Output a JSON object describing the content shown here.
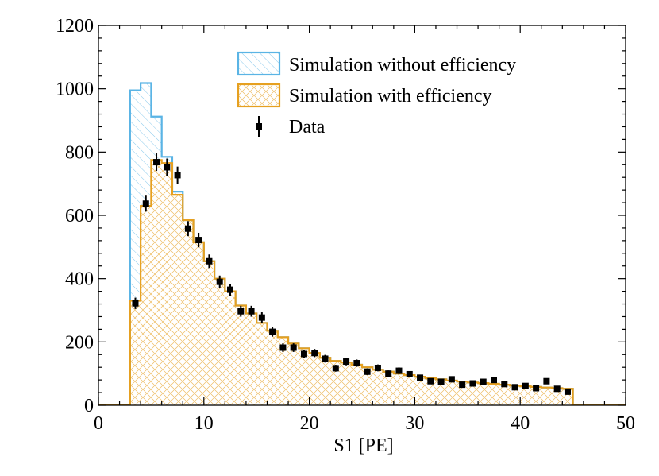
{
  "chart_data": {
    "type": "histogram",
    "xlabel": "S1 [PE]",
    "ylabel": "",
    "xlim": [
      0,
      50
    ],
    "ylim": [
      0,
      1200
    ],
    "xticks": [
      0,
      10,
      20,
      30,
      40,
      50
    ],
    "yticks": [
      0,
      200,
      400,
      600,
      800,
      1000,
      1200
    ],
    "bin_edges": [
      3,
      4,
      5,
      6,
      7,
      8,
      9,
      10,
      11,
      12,
      13,
      14,
      15,
      16,
      17,
      18,
      19,
      20,
      21,
      22,
      23,
      24,
      25,
      26,
      27,
      28,
      29,
      30,
      31,
      32,
      33,
      34,
      35,
      36,
      37,
      38,
      39,
      40,
      41,
      42,
      43,
      44,
      45
    ],
    "series": [
      {
        "name": "Simulation without efficiency",
        "style": "step-filled-hatched",
        "color": "#5ab4e5",
        "values": [
          995,
          1018,
          912,
          785,
          675,
          585,
          515,
          455,
          400,
          360,
          315,
          290,
          260,
          235,
          215,
          195,
          180,
          165,
          150,
          140,
          135,
          128,
          120,
          112,
          106,
          100,
          95,
          90,
          85,
          82,
          78,
          75,
          72,
          70,
          68,
          65,
          62,
          60,
          58,
          56,
          54,
          52
        ]
      },
      {
        "name": "Simulation with efficiency",
        "style": "step-filled-hatched",
        "color": "#e6a020",
        "values": [
          330,
          630,
          775,
          765,
          665,
          585,
          515,
          455,
          400,
          360,
          315,
          290,
          260,
          235,
          215,
          195,
          180,
          165,
          150,
          140,
          135,
          128,
          120,
          112,
          106,
          100,
          95,
          90,
          85,
          82,
          78,
          75,
          72,
          70,
          68,
          65,
          62,
          60,
          58,
          56,
          54,
          52
        ]
      },
      {
        "name": "Data",
        "style": "points-errorbars",
        "color": "#000000",
        "x": [
          3.5,
          4.5,
          5.5,
          6.5,
          7.5,
          8.5,
          9.5,
          10.5,
          11.5,
          12.5,
          13.5,
          14.5,
          15.5,
          16.5,
          17.5,
          18.5,
          19.5,
          20.5,
          21.5,
          22.5,
          23.5,
          24.5,
          25.5,
          26.5,
          27.5,
          28.5,
          29.5,
          30.5,
          31.5,
          32.5,
          33.5,
          34.5,
          35.5,
          36.5,
          37.5,
          38.5,
          39.5,
          40.5,
          41.5,
          42.5,
          43.5,
          44.5
        ],
        "values": [
          322,
          637,
          768,
          752,
          727,
          558,
          522,
          455,
          390,
          365,
          297,
          297,
          277,
          232,
          182,
          182,
          162,
          165,
          147,
          117,
          138,
          133,
          106,
          118,
          100,
          109,
          98,
          87,
          76,
          74,
          82,
          65,
          69,
          74,
          80,
          67,
          57,
          61,
          54,
          76,
          52,
          43
        ]
      }
    ],
    "legend": {
      "location": "top-center",
      "entries": [
        "Simulation without efficiency",
        "Simulation with efficiency",
        "Data"
      ]
    }
  }
}
